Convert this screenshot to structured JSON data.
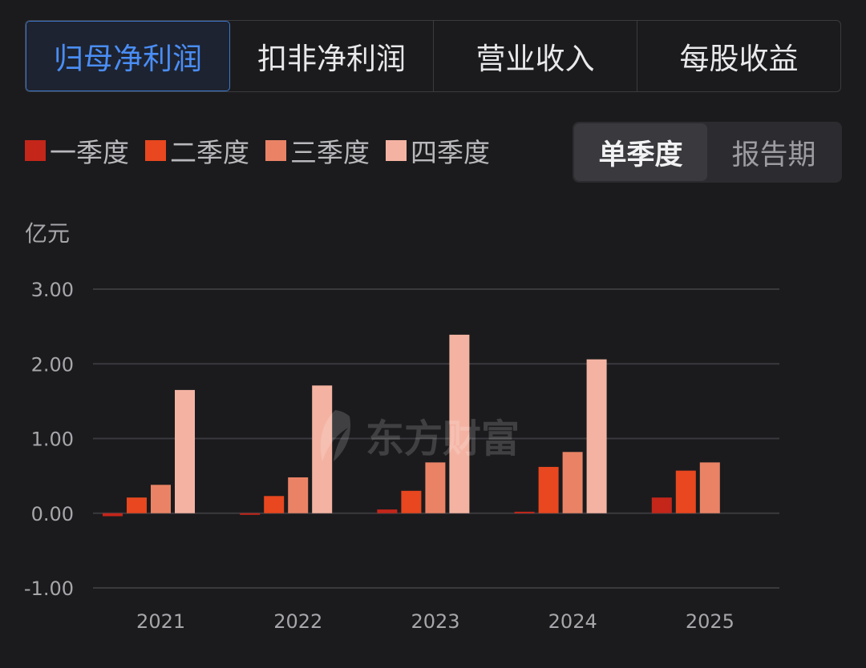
{
  "tabs": [
    {
      "label": "归母净利润",
      "active": true
    },
    {
      "label": "扣非净利润",
      "active": false
    },
    {
      "label": "营业收入",
      "active": false
    },
    {
      "label": "每股收益",
      "active": false
    }
  ],
  "period_toggle": {
    "options": [
      {
        "label": "单季度",
        "active": true
      },
      {
        "label": "报告期",
        "active": false
      }
    ]
  },
  "watermark_text": "东方财富",
  "chart_data": {
    "type": "bar",
    "unit_label": "亿元",
    "categories": [
      "2021",
      "2022",
      "2023",
      "2024",
      "2025"
    ],
    "series": [
      {
        "name": "一季度",
        "color": "#c4261a",
        "values": [
          -0.04,
          -0.01,
          0.05,
          0.02,
          0.21
        ]
      },
      {
        "name": "二季度",
        "color": "#e8471f",
        "values": [
          0.21,
          0.23,
          0.3,
          0.62,
          0.57
        ]
      },
      {
        "name": "三季度",
        "color": "#ea8366",
        "values": [
          0.38,
          0.48,
          0.68,
          0.82,
          0.68
        ]
      },
      {
        "name": "四季度",
        "color": "#f4b3a2",
        "values": [
          1.65,
          1.71,
          2.39,
          2.06,
          null
        ]
      }
    ],
    "y_ticks": [
      "3.00",
      "2.00",
      "1.00",
      "0.00",
      "-1.00"
    ],
    "ylim": [
      -1.0,
      3.0
    ],
    "grid": true,
    "legend_position": "top-left"
  }
}
